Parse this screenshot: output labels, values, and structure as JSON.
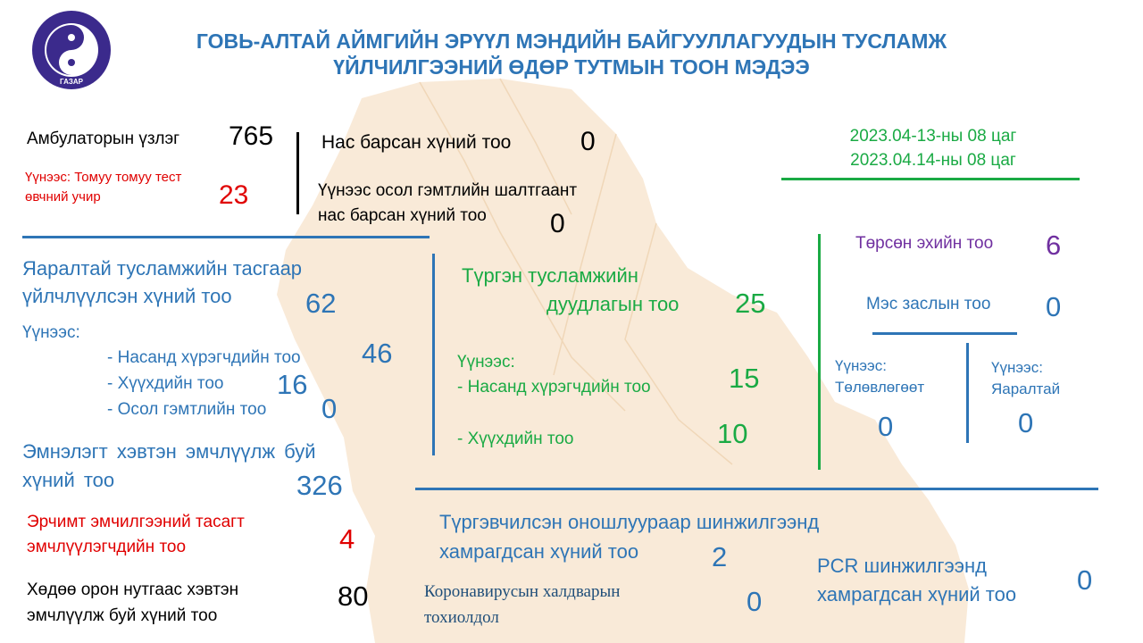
{
  "header": {
    "logo": {
      "ring_text": "ГОВЬ-АЛТАЙ АЙМГИЙН ЭРҮҮЛ МЭНДИЙН",
      "bottom_text": "ГАЗАР",
      "ring_color": "#3B2A8C"
    },
    "title_line1": "ГОВЬ-АЛТАЙ АЙМГИЙН ЭРҮҮЛ МЭНДИЙН БАЙГУУЛЛАГУУДЫН ТУСЛАМЖ",
    "title_line2": "ҮЙЛЧИЛГЭЭНИЙ ӨДӨР ТУТМЫН ТООН МЭДЭЭ"
  },
  "date_range": {
    "from": "2023.04-13-ны 08 цаг",
    "to": "2023.04.14-ны 08 цаг"
  },
  "outpatient": {
    "label": "Амбулаторын үзлэг",
    "value": "765",
    "flu_label_line1": "Үүнээс: Томуу томуу тест",
    "flu_label_line2": "өвчний учир",
    "flu_value": "23"
  },
  "deaths": {
    "label": "Нас барсан хүний тоо",
    "value": "0",
    "injury_label_line1": "Үүнээс осол гэмтлийн шалтгаант",
    "injury_label_line2": "нас барсан хүний тоо",
    "injury_value": "0"
  },
  "emergency_dept": {
    "label_line1": "Яаралтай тусламжийн тасгаар",
    "label_line2": "үйлчлүүлсэн хүний тоо",
    "value": "62",
    "of_which": "Үүнээс:",
    "adults_label": "- Насанд хүрэгчдийн тоо",
    "adults_value": "46",
    "children_label": "- Хүүхдийн тоо",
    "children_value": "16",
    "injury_label": "- Осол гэмтлийн тоо",
    "injury_value": "0"
  },
  "inpatient": {
    "label_line1": "Эмнэлэгт хэвтэн эмчлүүлж буй",
    "label_line2": "хүний тоо",
    "value": "326",
    "icu_label_line1": "Эрчимт эмчилгээний тасагт",
    "icu_label_line2": "эмчлүүлэгчдийн тоо",
    "icu_value": "4",
    "rural_label_line1": "Хөдөө орон нутгаас хэвтэн",
    "rural_label_line2": "эмчлүүлж буй хүний тоо",
    "rural_value": "80"
  },
  "ambulance": {
    "label_line1": "Түргэн тусламжийн",
    "label_line2": "дуудлагын тоо",
    "value": "25",
    "of_which": "Үүнээс:",
    "adults_label": "- Насанд хүрэгчдийн тоо",
    "adults_value": "15",
    "children_label": "- Хүүхдийн тоо",
    "children_value": "10"
  },
  "births": {
    "label": "Төрсөн эхийн тоо",
    "value": "6"
  },
  "csection": {
    "label": "Мэс заслын тоо",
    "value": "0",
    "planned_label_line1": "Үүнээс:",
    "planned_label_line2": "Төлөвлөгөөт",
    "planned_value": "0",
    "emergency_label_line1": "Үүнээс:",
    "emergency_label_line2": "Яаралтай",
    "emergency_value": "0"
  },
  "testing": {
    "rapid_label_line1": "Түргэвчилсэн оношлуураар шинжилгээнд",
    "rapid_label_line2": "хамрагдсан хүний тоо",
    "rapid_value": "2",
    "covid_label_line1": "Коронавирусын халдварын",
    "covid_label_line2": "тохиолдол",
    "covid_value": "0",
    "pcr_label_line1": "PCR шинжилгээнд",
    "pcr_label_line2": "хамрагдсан хүний тоо",
    "pcr_value": "0"
  },
  "colors": {
    "title_blue": "#2E75B6",
    "green": "#1AAA44",
    "red": "#E00000",
    "purple": "#7030A0",
    "map_fill": "#F4D9B8"
  }
}
